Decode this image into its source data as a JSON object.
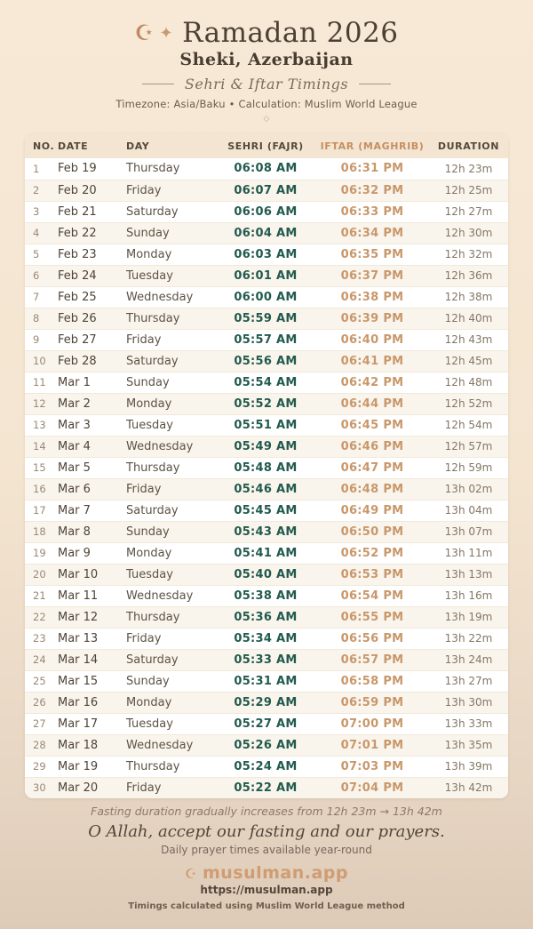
{
  "header": {
    "crescent_icon": "☪",
    "sparkle_icon": "✦",
    "title": "Ramadan 2026",
    "location": "Sheki, Azerbaijan",
    "subtitle": "Sehri & Iftar Timings",
    "meta": "Timezone: Asia/Baku • Calculation: Muslim World League",
    "diamond_icon": "◇"
  },
  "table": {
    "columns": [
      "NO.",
      "DATE",
      "DAY",
      "SEHRI (FAJR)",
      "IFTAR (MAGHRIB)",
      "DURATION"
    ],
    "rows": [
      {
        "no": "1",
        "date": "Feb 19",
        "day": "Thursday",
        "sehri": "06:08 AM",
        "iftar": "06:31 PM",
        "duration": "12h 23m"
      },
      {
        "no": "2",
        "date": "Feb 20",
        "day": "Friday",
        "sehri": "06:07 AM",
        "iftar": "06:32 PM",
        "duration": "12h 25m"
      },
      {
        "no": "3",
        "date": "Feb 21",
        "day": "Saturday",
        "sehri": "06:06 AM",
        "iftar": "06:33 PM",
        "duration": "12h 27m"
      },
      {
        "no": "4",
        "date": "Feb 22",
        "day": "Sunday",
        "sehri": "06:04 AM",
        "iftar": "06:34 PM",
        "duration": "12h 30m"
      },
      {
        "no": "5",
        "date": "Feb 23",
        "day": "Monday",
        "sehri": "06:03 AM",
        "iftar": "06:35 PM",
        "duration": "12h 32m"
      },
      {
        "no": "6",
        "date": "Feb 24",
        "day": "Tuesday",
        "sehri": "06:01 AM",
        "iftar": "06:37 PM",
        "duration": "12h 36m"
      },
      {
        "no": "7",
        "date": "Feb 25",
        "day": "Wednesday",
        "sehri": "06:00 AM",
        "iftar": "06:38 PM",
        "duration": "12h 38m"
      },
      {
        "no": "8",
        "date": "Feb 26",
        "day": "Thursday",
        "sehri": "05:59 AM",
        "iftar": "06:39 PM",
        "duration": "12h 40m"
      },
      {
        "no": "9",
        "date": "Feb 27",
        "day": "Friday",
        "sehri": "05:57 AM",
        "iftar": "06:40 PM",
        "duration": "12h 43m"
      },
      {
        "no": "10",
        "date": "Feb 28",
        "day": "Saturday",
        "sehri": "05:56 AM",
        "iftar": "06:41 PM",
        "duration": "12h 45m"
      },
      {
        "no": "11",
        "date": "Mar 1",
        "day": "Sunday",
        "sehri": "05:54 AM",
        "iftar": "06:42 PM",
        "duration": "12h 48m"
      },
      {
        "no": "12",
        "date": "Mar 2",
        "day": "Monday",
        "sehri": "05:52 AM",
        "iftar": "06:44 PM",
        "duration": "12h 52m"
      },
      {
        "no": "13",
        "date": "Mar 3",
        "day": "Tuesday",
        "sehri": "05:51 AM",
        "iftar": "06:45 PM",
        "duration": "12h 54m"
      },
      {
        "no": "14",
        "date": "Mar 4",
        "day": "Wednesday",
        "sehri": "05:49 AM",
        "iftar": "06:46 PM",
        "duration": "12h 57m"
      },
      {
        "no": "15",
        "date": "Mar 5",
        "day": "Thursday",
        "sehri": "05:48 AM",
        "iftar": "06:47 PM",
        "duration": "12h 59m"
      },
      {
        "no": "16",
        "date": "Mar 6",
        "day": "Friday",
        "sehri": "05:46 AM",
        "iftar": "06:48 PM",
        "duration": "13h 02m"
      },
      {
        "no": "17",
        "date": "Mar 7",
        "day": "Saturday",
        "sehri": "05:45 AM",
        "iftar": "06:49 PM",
        "duration": "13h 04m"
      },
      {
        "no": "18",
        "date": "Mar 8",
        "day": "Sunday",
        "sehri": "05:43 AM",
        "iftar": "06:50 PM",
        "duration": "13h 07m"
      },
      {
        "no": "19",
        "date": "Mar 9",
        "day": "Monday",
        "sehri": "05:41 AM",
        "iftar": "06:52 PM",
        "duration": "13h 11m"
      },
      {
        "no": "20",
        "date": "Mar 10",
        "day": "Tuesday",
        "sehri": "05:40 AM",
        "iftar": "06:53 PM",
        "duration": "13h 13m"
      },
      {
        "no": "21",
        "date": "Mar 11",
        "day": "Wednesday",
        "sehri": "05:38 AM",
        "iftar": "06:54 PM",
        "duration": "13h 16m"
      },
      {
        "no": "22",
        "date": "Mar 12",
        "day": "Thursday",
        "sehri": "05:36 AM",
        "iftar": "06:55 PM",
        "duration": "13h 19m"
      },
      {
        "no": "23",
        "date": "Mar 13",
        "day": "Friday",
        "sehri": "05:34 AM",
        "iftar": "06:56 PM",
        "duration": "13h 22m"
      },
      {
        "no": "24",
        "date": "Mar 14",
        "day": "Saturday",
        "sehri": "05:33 AM",
        "iftar": "06:57 PM",
        "duration": "13h 24m"
      },
      {
        "no": "25",
        "date": "Mar 15",
        "day": "Sunday",
        "sehri": "05:31 AM",
        "iftar": "06:58 PM",
        "duration": "13h 27m"
      },
      {
        "no": "26",
        "date": "Mar 16",
        "day": "Monday",
        "sehri": "05:29 AM",
        "iftar": "06:59 PM",
        "duration": "13h 30m"
      },
      {
        "no": "27",
        "date": "Mar 17",
        "day": "Tuesday",
        "sehri": "05:27 AM",
        "iftar": "07:00 PM",
        "duration": "13h 33m"
      },
      {
        "no": "28",
        "date": "Mar 18",
        "day": "Wednesday",
        "sehri": "05:26 AM",
        "iftar": "07:01 PM",
        "duration": "13h 35m"
      },
      {
        "no": "29",
        "date": "Mar 19",
        "day": "Thursday",
        "sehri": "05:24 AM",
        "iftar": "07:03 PM",
        "duration": "13h 39m"
      },
      {
        "no": "30",
        "date": "Mar 20",
        "day": "Friday",
        "sehri": "05:22 AM",
        "iftar": "07:04 PM",
        "duration": "13h 42m"
      }
    ]
  },
  "footer": {
    "note": "Fasting duration gradually increases from 12h 23m → 13h 42m",
    "dua": "O Allah, accept our fasting and our prayers.",
    "availability": "Daily prayer times available year-round",
    "brand_icon": "☪",
    "brand": "musulman.app",
    "url": "https://musulman.app",
    "method": "Timings calculated using Muslim World League method"
  },
  "colors": {
    "background_top": "#f7e9d6",
    "background_bottom": "#ddcbb8",
    "accent_tan": "#c9976a",
    "sehri_teal": "#215a4e",
    "title_brown": "#4c4034",
    "header_row_bg": "#f3e5d1",
    "stripe_row_bg": "#faf5ec"
  }
}
